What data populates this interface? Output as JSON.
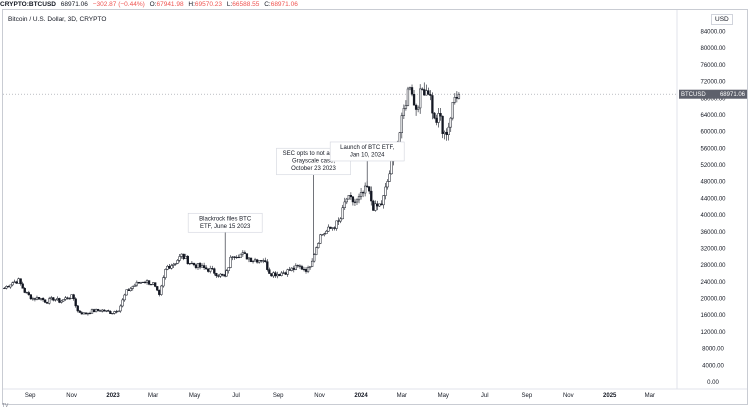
{
  "header": {
    "symbol": "CRYPTO:BTCUSD",
    "price": "68971.06",
    "change": "−302.87 (−0.44%)",
    "open_label": "O:",
    "open": "67941.98",
    "high_label": "H:",
    "high": "69570.23",
    "low_label": "L:",
    "low": "66588.55",
    "close_label": "C:",
    "close": "68971.06"
  },
  "chart_title": "Bitcoin / U.S. Dollar, 3D, CRYPTO",
  "currency_button": "USD",
  "price_tag": {
    "symbol": "BTCUSD",
    "value": "68971.06"
  },
  "colors": {
    "up": "#131722",
    "down": "#131722",
    "accent": "#ef5350",
    "tag_bg": "#5d606b"
  },
  "chart_data": {
    "type": "candlestick",
    "title": "Bitcoin / U.S. Dollar, 3D, CRYPTO",
    "xlabel": "",
    "ylabel": "",
    "ylim": [
      0,
      86000
    ],
    "y_ticks": [
      "84000.00",
      "80000.00",
      "76000.00",
      "72000.00",
      "68000.00",
      "64000.00",
      "60000.00",
      "56000.00",
      "52000.00",
      "48000.00",
      "44000.00",
      "40000.00",
      "36000.00",
      "32000.00",
      "28000.00",
      "24000.00",
      "20000.00",
      "16000.00",
      "12000.00",
      "8000.00",
      "4000.00",
      "0.00"
    ],
    "x_ticks": [
      "Sep",
      "Nov",
      "2023",
      "Mar",
      "May",
      "Jul",
      "Sep",
      "Nov",
      "2024",
      "Mar",
      "May",
      "Jul",
      "Sep",
      "Nov",
      "2025",
      "Mar"
    ],
    "x_tick_dates": [
      "2022-09-01",
      "2022-11-01",
      "2023-01-01",
      "2023-03-01",
      "2023-05-01",
      "2023-07-01",
      "2023-09-01",
      "2023-11-01",
      "2024-01-01",
      "2024-03-01",
      "2024-05-01",
      "2024-07-01",
      "2024-09-01",
      "2024-11-01",
      "2025-01-01",
      "2025-03-01"
    ],
    "x_range": [
      "2022-07-23",
      "2025-04-10"
    ],
    "series": [
      {
        "values": [
          [
            "2022-07-25",
            22500
          ],
          [
            "2022-08-05",
            23800
          ],
          [
            "2022-08-15",
            24300
          ],
          [
            "2022-08-25",
            21400
          ],
          [
            "2022-09-05",
            20000
          ],
          [
            "2022-09-15",
            20200
          ],
          [
            "2022-09-25",
            19200
          ],
          [
            "2022-10-05",
            20000
          ],
          [
            "2022-10-15",
            19300
          ],
          [
            "2022-10-25",
            20200
          ],
          [
            "2022-11-03",
            20500
          ],
          [
            "2022-11-10",
            17000
          ],
          [
            "2022-11-20",
            16300
          ],
          [
            "2022-12-01",
            17000
          ],
          [
            "2022-12-15",
            17200
          ],
          [
            "2022-12-30",
            16600
          ],
          [
            "2023-01-10",
            17500
          ],
          [
            "2023-01-20",
            21500
          ],
          [
            "2023-02-01",
            23200
          ],
          [
            "2023-02-15",
            24300
          ],
          [
            "2023-03-01",
            23500
          ],
          [
            "2023-03-10",
            20500
          ],
          [
            "2023-03-20",
            27500
          ],
          [
            "2023-04-01",
            28500
          ],
          [
            "2023-04-12",
            30300
          ],
          [
            "2023-04-25",
            28500
          ],
          [
            "2023-05-10",
            27500
          ],
          [
            "2023-05-25",
            26800
          ],
          [
            "2023-06-05",
            25800
          ],
          [
            "2023-06-15",
            25100
          ],
          [
            "2023-06-25",
            30500
          ],
          [
            "2023-07-10",
            30600
          ],
          [
            "2023-07-25",
            29300
          ],
          [
            "2023-08-10",
            29400
          ],
          [
            "2023-08-20",
            26100
          ],
          [
            "2023-09-01",
            25900
          ],
          [
            "2023-09-15",
            26600
          ],
          [
            "2023-10-01",
            27600
          ],
          [
            "2023-10-15",
            26900
          ],
          [
            "2023-10-23",
            30500
          ],
          [
            "2023-11-01",
            35000
          ],
          [
            "2023-11-15",
            36500
          ],
          [
            "2023-12-01",
            38500
          ],
          [
            "2023-12-10",
            44000
          ],
          [
            "2023-12-25",
            43000
          ],
          [
            "2024-01-10",
            46500
          ],
          [
            "2024-01-20",
            41500
          ],
          [
            "2024-02-01",
            42800
          ],
          [
            "2024-02-15",
            52000
          ],
          [
            "2024-02-28",
            60500
          ],
          [
            "2024-03-05",
            66000
          ],
          [
            "2024-03-14",
            72500
          ],
          [
            "2024-03-20",
            65000
          ],
          [
            "2024-04-01",
            70500
          ],
          [
            "2024-04-10",
            70000
          ],
          [
            "2024-04-18",
            62500
          ],
          [
            "2024-04-28",
            63500
          ],
          [
            "2024-05-01",
            58000
          ],
          [
            "2024-05-10",
            62000
          ],
          [
            "2024-05-20",
            69500
          ],
          [
            "2024-05-26",
            68971
          ]
        ]
      }
    ],
    "annotations": [
      {
        "lines": [
          "Blackrock files BTC",
          "ETF, June 15 2023"
        ],
        "date": "2023-06-15",
        "value": 25100
      },
      {
        "lines": [
          "SEC opts to not appeal",
          "Grayscale case,",
          "October 23 2023"
        ],
        "date": "2023-10-23",
        "value": 30500
      },
      {
        "lines": [
          "Launch of BTC ETF,",
          "Jan 10, 2024"
        ],
        "date": "2024-01-10",
        "value": 46500
      }
    ],
    "grid": false
  },
  "logo": "TV"
}
